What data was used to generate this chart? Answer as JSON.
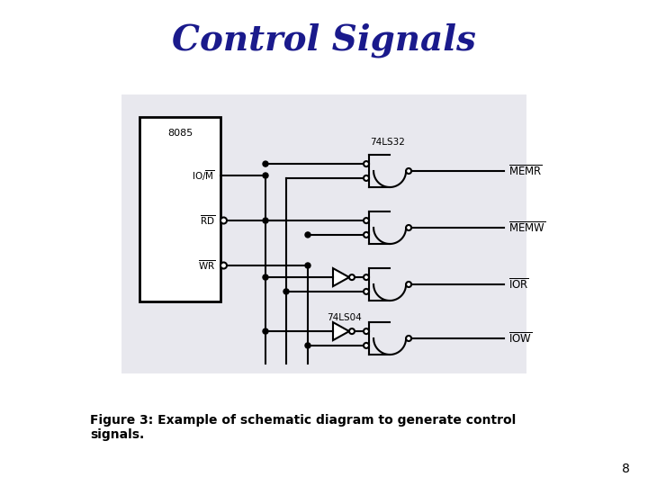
{
  "title": "Control Signals",
  "title_color": "#1a1a8c",
  "title_fontsize": 28,
  "caption": "Figure 3: Example of schematic diagram to generate control\nsignals.",
  "caption_fontsize": 10,
  "page_number": "8",
  "bg_color": "#ffffff",
  "schematic_bg": "#e8e8ee",
  "line_color": "#000000",
  "chip_label": "8085",
  "gate_chip_label1": "74LS32",
  "gate_chip_label2": "74LS04",
  "output_labels": [
    "MEMR",
    "MEMW",
    "IOR",
    "IOW"
  ]
}
